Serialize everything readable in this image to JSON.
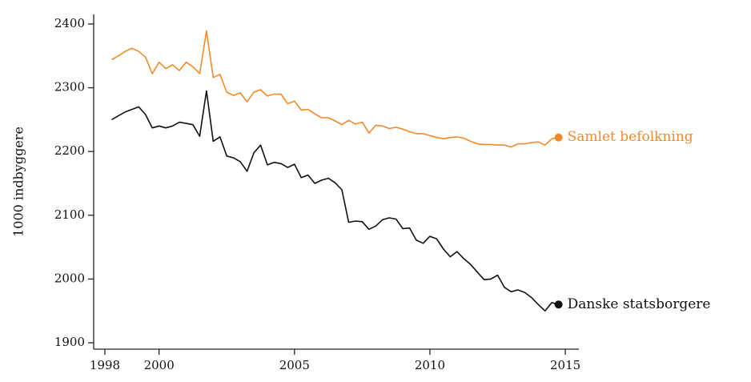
{
  "chart_data": {
    "type": "line",
    "title": "",
    "xlabel": "",
    "ylabel": "1000 indbyggere",
    "xlim": [
      1998,
      2015.5
    ],
    "ylim": [
      1890,
      2415
    ],
    "x_ticks": [
      1998,
      2000,
      2005,
      2010,
      2015
    ],
    "x_tick_labels": [
      "1998",
      "2000",
      "2005",
      "2010",
      "2015"
    ],
    "y_ticks": [
      1900,
      2000,
      2100,
      2200,
      2300,
      2400
    ],
    "y_tick_labels": [
      "1900",
      "2000",
      "2100",
      "2200",
      "2300",
      "2400"
    ],
    "grid": false,
    "legend": "direct labels at line ends",
    "colors": {
      "samlet": "#f28a2a",
      "danske": "#111111",
      "axis": "#222222"
    },
    "series": [
      {
        "name": "Samlet befolkning",
        "color": "#f28a2a",
        "x": [
          1998.25,
          1998.5,
          1998.75,
          1999.0,
          1999.25,
          1999.5,
          1999.75,
          2000.0,
          2000.25,
          2000.5,
          2000.75,
          2001.0,
          2001.25,
          2001.5,
          2001.75,
          2002.0,
          2002.25,
          2002.5,
          2002.75,
          2003.0,
          2003.25,
          2003.5,
          2003.75,
          2004.0,
          2004.25,
          2004.5,
          2004.75,
          2005.0,
          2005.25,
          2005.5,
          2005.75,
          2006.0,
          2006.25,
          2006.5,
          2006.75,
          2007.0,
          2007.25,
          2007.5,
          2007.75,
          2008.0,
          2008.25,
          2008.5,
          2008.75,
          2009.0,
          2009.25,
          2009.5,
          2009.75,
          2010.0,
          2010.25,
          2010.5,
          2010.75,
          2011.0,
          2011.25,
          2011.5,
          2011.75,
          2012.0,
          2012.25,
          2012.5,
          2012.75,
          2013.0,
          2013.25,
          2013.5,
          2013.75,
          2014.0,
          2014.25,
          2014.5,
          2014.75
        ],
        "values": [
          2344,
          2350,
          2357,
          2362,
          2357,
          2348,
          2322,
          2340,
          2330,
          2336,
          2327,
          2340,
          2333,
          2322,
          2389,
          2316,
          2321,
          2293,
          2288,
          2292,
          2278,
          2293,
          2297,
          2287,
          2290,
          2290,
          2275,
          2279,
          2265,
          2266,
          2259,
          2253,
          2253,
          2248,
          2242,
          2249,
          2243,
          2246,
          2229,
          2241,
          2240,
          2236,
          2238,
          2235,
          2231,
          2228,
          2228,
          2225,
          2222,
          2220,
          2222,
          2223,
          2221,
          2216,
          2212,
          2211,
          2211,
          2210,
          2210,
          2207,
          2212,
          2212,
          2214,
          2215,
          2210,
          2220,
          2222
        ]
      },
      {
        "name": "Danske statsborgere",
        "color": "#111111",
        "x": [
          1998.25,
          1998.5,
          1998.75,
          1999.0,
          1999.25,
          1999.5,
          1999.75,
          2000.0,
          2000.25,
          2000.5,
          2000.75,
          2001.0,
          2001.25,
          2001.5,
          2001.75,
          2002.0,
          2002.25,
          2002.5,
          2002.75,
          2003.0,
          2003.25,
          2003.5,
          2003.75,
          2004.0,
          2004.25,
          2004.5,
          2004.75,
          2005.0,
          2005.25,
          2005.5,
          2005.75,
          2006.0,
          2006.25,
          2006.5,
          2006.75,
          2007.0,
          2007.25,
          2007.5,
          2007.75,
          2008.0,
          2008.25,
          2008.5,
          2008.75,
          2009.0,
          2009.25,
          2009.5,
          2009.75,
          2010.0,
          2010.25,
          2010.5,
          2010.75,
          2011.0,
          2011.25,
          2011.5,
          2011.75,
          2012.0,
          2012.25,
          2012.5,
          2012.75,
          2013.0,
          2013.25,
          2013.5,
          2013.75,
          2014.0,
          2014.25,
          2014.5,
          2014.75
        ],
        "values": [
          2250,
          2256,
          2262,
          2266,
          2270,
          2258,
          2237,
          2240,
          2237,
          2240,
          2246,
          2244,
          2242,
          2224,
          2295,
          2216,
          2223,
          2193,
          2190,
          2184,
          2169,
          2198,
          2210,
          2179,
          2183,
          2181,
          2175,
          2180,
          2159,
          2163,
          2150,
          2155,
          2158,
          2151,
          2140,
          2089,
          2091,
          2090,
          2078,
          2083,
          2093,
          2096,
          2094,
          2079,
          2080,
          2061,
          2056,
          2067,
          2063,
          2047,
          2035,
          2043,
          2032,
          2023,
          2011,
          1999,
          2000,
          2006,
          1987,
          1980,
          1983,
          1979,
          1971,
          1960,
          1950,
          1963,
          1960
        ]
      }
    ]
  }
}
